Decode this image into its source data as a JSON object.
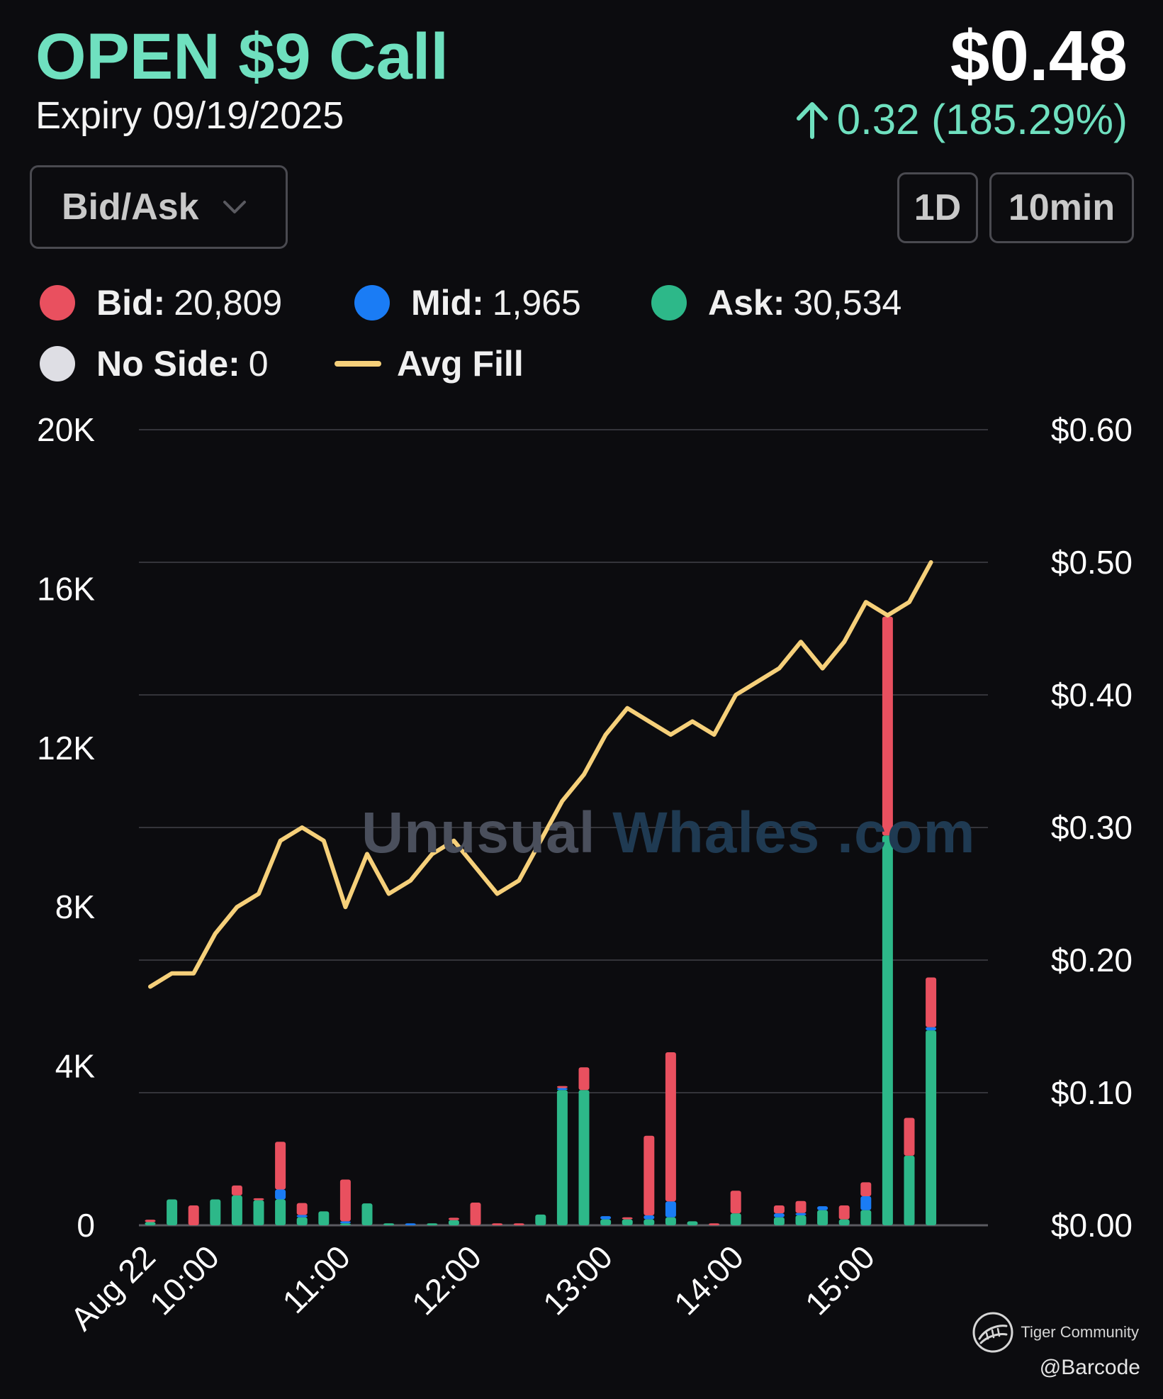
{
  "header": {
    "title": "OPEN $9 Call",
    "expiry": "Expiry 09/19/2025",
    "price": "$0.48",
    "change": "0.32 (185.29%)",
    "change_icon": "arrow-up-icon",
    "accent_color": "#6fe0bf"
  },
  "controls": {
    "dropdown_label": "Bid/Ask",
    "dropdown_icon": "chevron-down-icon",
    "range_button": "1D",
    "interval_button": "10min"
  },
  "legend": {
    "bid_label": "Bid:",
    "bid_value": "20,809",
    "bid_color": "#e9505f",
    "mid_label": "Mid:",
    "mid_value": "1,965",
    "mid_color": "#1a7cf5",
    "ask_label": "Ask:",
    "ask_value": "30,534",
    "ask_color": "#2db889",
    "noside_label": "No Side:",
    "noside_value": "0",
    "noside_color": "#dedee4",
    "avgfill_label": "Avg Fill",
    "avgfill_color": "#f6d07a"
  },
  "watermark": {
    "part1": "Unusual",
    "part2": "Whales",
    "part3": ".com"
  },
  "footer": {
    "brand": "Tiger Community",
    "brand_icon": "tiger-logo-icon",
    "handle": "@Barcode"
  },
  "chart_data": {
    "type": "bar",
    "stacked": true,
    "left_axis": {
      "min": 0,
      "max": 20000,
      "ticks": [
        0,
        4000,
        8000,
        12000,
        16000,
        20000
      ],
      "tick_labels": [
        "0",
        "4K",
        "8K",
        "12K",
        "16K",
        "20K"
      ]
    },
    "right_axis": {
      "min": 0,
      "max": 0.6,
      "ticks": [
        0,
        0.1,
        0.2,
        0.3,
        0.4,
        0.5,
        0.6
      ],
      "tick_labels": [
        "$0.00",
        "$0.10",
        "$0.20",
        "$0.30",
        "$0.40",
        "$0.50",
        "$0.60"
      ]
    },
    "x_tick_labels": [
      "Aug 22",
      "10:00",
      "11:00",
      "12:00",
      "13:00",
      "14:00",
      "15:00"
    ],
    "grid": true,
    "legend_position": "top",
    "bars": [
      {
        "ask": 80,
        "mid": 0,
        "bid": 60
      },
      {
        "ask": 650,
        "mid": 0,
        "bid": 0
      },
      {
        "ask": 0,
        "mid": 0,
        "bid": 500
      },
      {
        "ask": 650,
        "mid": 0,
        "bid": 0
      },
      {
        "ask": 750,
        "mid": 0,
        "bid": 250
      },
      {
        "ask": 630,
        "mid": 0,
        "bid": 50
      },
      {
        "ask": 650,
        "mid": 250,
        "bid": 1200
      },
      {
        "ask": 200,
        "mid": 60,
        "bid": 300
      },
      {
        "ask": 350,
        "mid": 0,
        "bid": 0
      },
      {
        "ask": 50,
        "mid": 50,
        "bid": 1050
      },
      {
        "ask": 550,
        "mid": 0,
        "bid": 0
      },
      {
        "ask": 50,
        "mid": 0,
        "bid": 0
      },
      {
        "ask": 0,
        "mid": 50,
        "bid": 0
      },
      {
        "ask": 50,
        "mid": 0,
        "bid": 0
      },
      {
        "ask": 130,
        "mid": 0,
        "bid": 60
      },
      {
        "ask": 0,
        "mid": 0,
        "bid": 570
      },
      {
        "ask": 0,
        "mid": 0,
        "bid": 50
      },
      {
        "ask": 0,
        "mid": 0,
        "bid": 50
      },
      {
        "ask": 270,
        "mid": 0,
        "bid": 0
      },
      {
        "ask": 3400,
        "mid": 50,
        "bid": 50
      },
      {
        "ask": 3400,
        "mid": 0,
        "bid": 570
      },
      {
        "ask": 150,
        "mid": 80,
        "bid": 0
      },
      {
        "ask": 150,
        "mid": 0,
        "bid": 50
      },
      {
        "ask": 150,
        "mid": 100,
        "bid": 2000
      },
      {
        "ask": 200,
        "mid": 400,
        "bid": 3750
      },
      {
        "ask": 100,
        "mid": 0,
        "bid": 0
      },
      {
        "ask": 0,
        "mid": 0,
        "bid": 50
      },
      {
        "ask": 300,
        "mid": 0,
        "bid": 570
      },
      {
        "ask": 0,
        "mid": 0,
        "bid": 0
      },
      {
        "ask": 200,
        "mid": 100,
        "bid": 200
      },
      {
        "ask": 250,
        "mid": 60,
        "bid": 300
      },
      {
        "ask": 380,
        "mid": 100,
        "bid": 0
      },
      {
        "ask": 150,
        "mid": 0,
        "bid": 350
      },
      {
        "ask": 380,
        "mid": 350,
        "bid": 350
      },
      {
        "ask": 9800,
        "mid": 0,
        "bid": 5500
      },
      {
        "ask": 1750,
        "mid": 0,
        "bid": 950
      },
      {
        "ask": 4900,
        "mid": 80,
        "bid": 1250
      }
    ],
    "avg_fill": [
      0.18,
      0.19,
      0.19,
      0.22,
      0.24,
      0.25,
      0.29,
      0.3,
      0.29,
      0.24,
      0.28,
      0.25,
      0.26,
      0.28,
      0.29,
      0.27,
      0.25,
      0.26,
      0.29,
      0.32,
      0.34,
      0.37,
      0.39,
      0.38,
      0.37,
      0.38,
      0.37,
      0.4,
      0.41,
      0.42,
      0.44,
      0.42,
      0.44,
      0.47,
      0.46,
      0.47,
      0.5
    ]
  }
}
